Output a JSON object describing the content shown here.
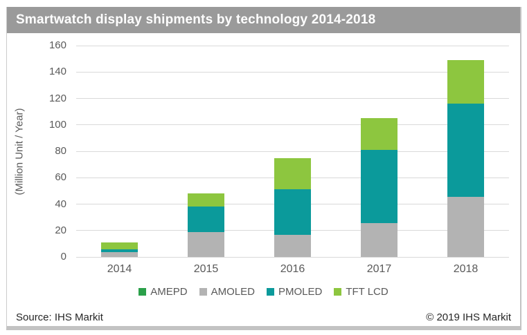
{
  "title": "Smartwatch display shipments by technology 2014-2018",
  "footer": {
    "source": "Source: IHS Markit",
    "copyright": "© 2019 IHS Markit"
  },
  "colors": {
    "title_bar": "#9a9a9a",
    "grid": "#d9d9d9",
    "axis_text": "#595959",
    "frame_border": "#c3c3c3"
  },
  "chart_data": {
    "type": "bar",
    "stacked": true,
    "title": "Smartwatch display shipments by technology 2014-2018",
    "xlabel": "",
    "ylabel": "(Million Unit / Year)",
    "categories": [
      "2014",
      "2015",
      "2016",
      "2017",
      "2018"
    ],
    "series": [
      {
        "name": "AMEPD",
        "color": "#2ba04a",
        "values": [
          0,
          0,
          0,
          0,
          0
        ]
      },
      {
        "name": "AMOLED",
        "color": "#b3b3b3",
        "values": [
          3.5,
          19,
          17,
          25.5,
          45.5
        ]
      },
      {
        "name": "PMOLED",
        "color": "#0b9a9b",
        "values": [
          2.5,
          19,
          34.5,
          55.5,
          70.5
        ]
      },
      {
        "name": "TFT LCD",
        "color": "#8dc63f",
        "values": [
          5,
          10,
          23.5,
          24,
          33
        ]
      }
    ],
    "totals": [
      11,
      48,
      75,
      105,
      149
    ],
    "ylim": [
      0,
      160
    ],
    "yticks": [
      0,
      20,
      40,
      60,
      80,
      100,
      120,
      140,
      160
    ],
    "grid": "horizontal",
    "legend_position": "bottom"
  }
}
